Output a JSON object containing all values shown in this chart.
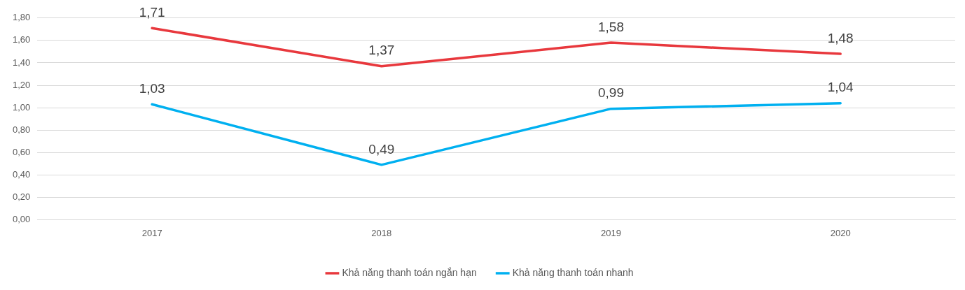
{
  "chart_data": {
    "type": "line",
    "categories": [
      "2017",
      "2018",
      "2019",
      "2020"
    ],
    "series": [
      {
        "name": "Khả năng thanh toán ngắn hạn",
        "color": "#e8383d",
        "values": [
          1.71,
          1.37,
          1.58,
          1.48
        ],
        "value_labels": [
          "1,71",
          "1,37",
          "1,58",
          "1,48"
        ]
      },
      {
        "name": "Khả năng thanh toán nhanh",
        "color": "#00b0f0",
        "values": [
          1.03,
          0.49,
          0.99,
          1.04
        ],
        "value_labels": [
          "1,03",
          "0,49",
          "0,99",
          "1,04"
        ]
      }
    ],
    "ylim": [
      0,
      1.8
    ],
    "yticks": [
      {
        "value": 0,
        "label": "0,00"
      },
      {
        "value": 0.2,
        "label": "0,20"
      },
      {
        "value": 0.4,
        "label": "0,40"
      },
      {
        "value": 0.6,
        "label": "0,60"
      },
      {
        "value": 0.8,
        "label": "0,80"
      },
      {
        "value": 1,
        "label": "1,00"
      },
      {
        "value": 1.2,
        "label": "1,20"
      },
      {
        "value": 1.4,
        "label": "1,40"
      },
      {
        "value": 1.6,
        "label": "1,60"
      },
      {
        "value": 1.8,
        "label": "1,80"
      }
    ],
    "grid": "y",
    "legend": "bottom",
    "marker": "none",
    "line_style": "solid"
  }
}
